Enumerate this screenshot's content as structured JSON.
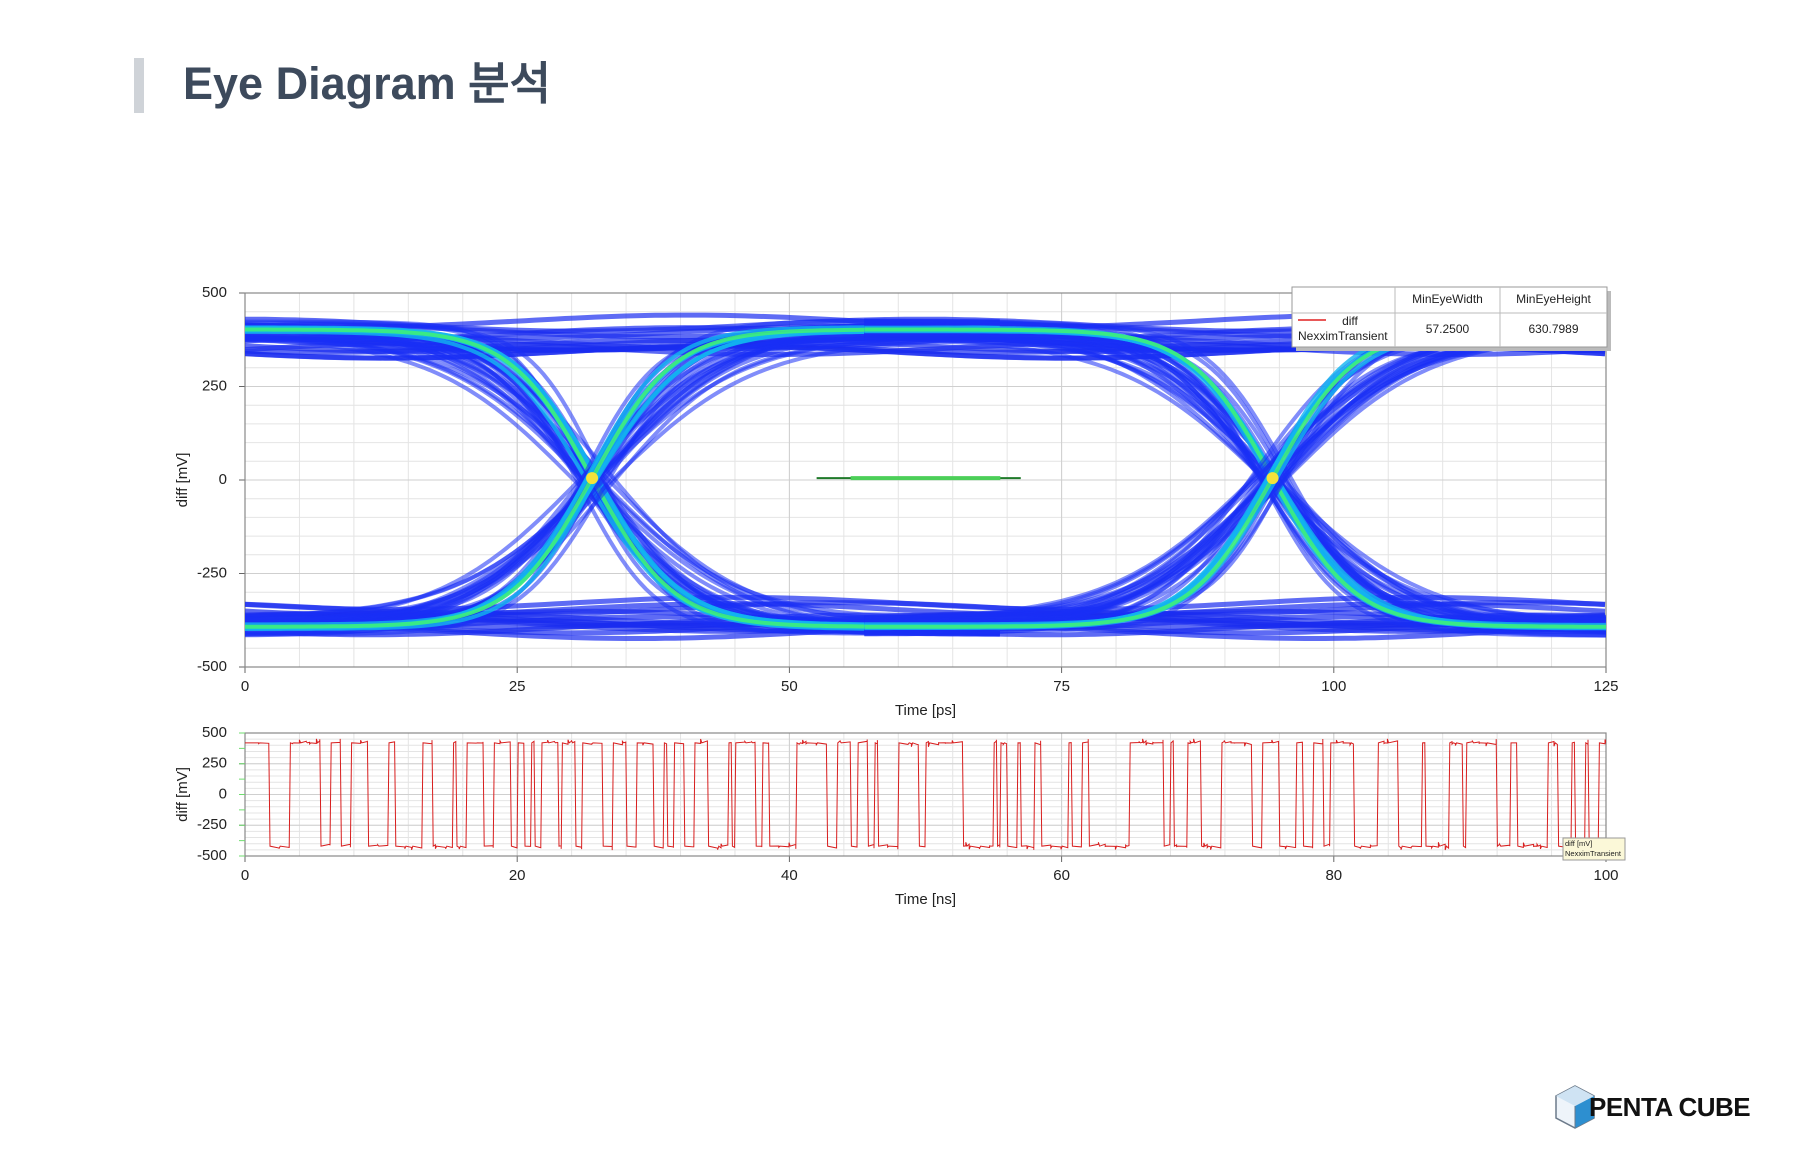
{
  "header": {
    "title": "Eye Diagram  분석"
  },
  "chart_data": [
    {
      "type": "eye",
      "xlabel": "Time [ps]",
      "ylabel": "diff [mV]",
      "xlim": [
        0,
        125
      ],
      "xticks": [
        0,
        25,
        50,
        75,
        100,
        125
      ],
      "ylim": [
        -500,
        500
      ],
      "yticks": [
        500,
        250,
        0,
        -250,
        -500
      ],
      "grid": true,
      "measurements": {
        "columns": [
          "MinEyeWidth",
          "MinEyeHeight"
        ],
        "series": [
          {
            "name": "diff",
            "source": "NexximTransient",
            "color": "#e02020",
            "values": [
              57.25,
              630.7989
            ],
            "value_labels": [
              "57.2500",
              "630.7989"
            ]
          }
        ]
      }
    },
    {
      "type": "waveform",
      "xlabel": "Time [ns]",
      "ylabel": "diff [mV]",
      "xlim": [
        0,
        100
      ],
      "xticks": [
        0,
        20,
        40,
        60,
        80,
        100
      ],
      "ylim": [
        -500,
        500
      ],
      "yticks": [
        500,
        250,
        0,
        -250,
        -500
      ],
      "grid": true,
      "color": "#d81e1e",
      "marker_label": [
        "diff [mV]",
        "NexximTransient"
      ]
    }
  ],
  "logo": {
    "text": "PENTA CUBE"
  }
}
